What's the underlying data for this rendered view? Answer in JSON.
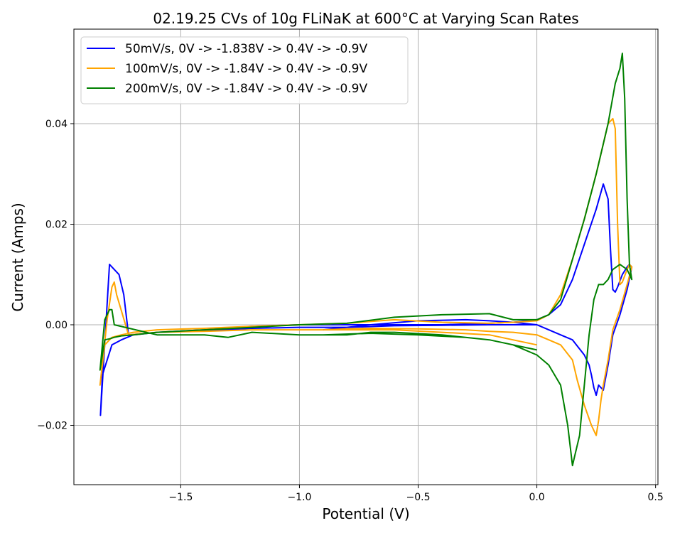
{
  "chart_data": {
    "type": "line",
    "title": "02.19.25 CVs of 10g FLiNaK at 600°C at Varying Scan Rates",
    "xlabel": "Potential (V)",
    "ylabel": "Current (Amps)",
    "xlim": [
      -1.95,
      0.51
    ],
    "ylim": [
      -0.0318,
      0.0588
    ],
    "xticks": [
      -1.5,
      -1.0,
      -0.5,
      0.0,
      0.5
    ],
    "xtick_labels": [
      "−1.5",
      "−1.0",
      "−0.5",
      "0.0",
      "0.5"
    ],
    "yticks": [
      -0.02,
      0.0,
      0.02,
      0.04
    ],
    "ytick_labels": [
      "−0.02",
      "0.00",
      "0.02",
      "0.04"
    ],
    "grid": true,
    "legend_position": "top-left",
    "series": [
      {
        "name": "50mV/s, 0V -> -1.838V -> 0.4V -> -0.9V",
        "color": "#0000ff",
        "x": [
          0.0,
          -0.2,
          -0.4,
          -0.6,
          -0.8,
          -1.0,
          -1.2,
          -1.4,
          -1.6,
          -1.72,
          -1.74,
          -1.76,
          -1.8,
          -1.838,
          -1.83,
          -1.79,
          -1.75,
          -1.7,
          -1.6,
          -1.4,
          -1.2,
          -1.0,
          -0.8,
          -0.6,
          -0.4,
          -0.2,
          -0.1,
          0.0,
          0.05,
          0.1,
          0.15,
          0.2,
          0.25,
          0.28,
          0.3,
          0.31,
          0.32,
          0.33,
          0.34,
          0.36,
          0.38,
          0.39,
          0.4,
          0.38,
          0.35,
          0.32,
          0.3,
          0.28,
          0.26,
          0.25,
          0.24,
          0.23,
          0.22,
          0.2,
          0.15,
          0.1,
          0.05,
          0.0,
          -0.1,
          -0.2,
          -0.3,
          -0.5,
          -0.7,
          -0.8,
          -0.9
        ],
        "y": [
          0.0,
          0.0,
          -0.0001,
          -0.0002,
          -0.0005,
          -0.0005,
          -0.0007,
          -0.0012,
          -0.0015,
          -0.002,
          0.006,
          0.01,
          0.012,
          -0.018,
          -0.01,
          -0.004,
          -0.003,
          -0.002,
          -0.0015,
          -0.001,
          -0.0003,
          0.0,
          0.0,
          0.0,
          0.0,
          0.0003,
          0.0005,
          0.001,
          0.002,
          0.004,
          0.009,
          0.016,
          0.023,
          0.028,
          0.025,
          0.015,
          0.007,
          0.0065,
          0.0075,
          0.01,
          0.0115,
          0.012,
          0.0115,
          0.007,
          0.002,
          -0.002,
          -0.008,
          -0.013,
          -0.012,
          -0.014,
          -0.0125,
          -0.01,
          -0.008,
          -0.006,
          -0.003,
          -0.002,
          -0.001,
          0.0,
          0.0005,
          0.0008,
          0.001,
          0.0008,
          0.0,
          -0.0005,
          -0.001
        ]
      },
      {
        "name": "100mV/s, 0V -> -1.84V -> 0.4V -> -0.9V",
        "color": "#ffa500",
        "x": [
          0.0,
          -0.2,
          -0.4,
          -0.6,
          -0.8,
          -1.0,
          -1.2,
          -1.4,
          -1.6,
          -1.72,
          -1.77,
          -1.78,
          -1.79,
          -1.81,
          -1.84,
          -1.82,
          -1.79,
          -1.75,
          -1.7,
          -1.6,
          -1.4,
          -1.2,
          -1.0,
          -0.8,
          -0.6,
          -0.4,
          -0.2,
          -0.1,
          0.0,
          0.05,
          0.1,
          0.15,
          0.2,
          0.25,
          0.3,
          0.32,
          0.33,
          0.34,
          0.35,
          0.36,
          0.38,
          0.39,
          0.4,
          0.38,
          0.35,
          0.32,
          0.3,
          0.28,
          0.27,
          0.26,
          0.25,
          0.23,
          0.2,
          0.17,
          0.15,
          0.1,
          0.05,
          0.0,
          -0.1,
          -0.2,
          -0.3,
          -0.5,
          -0.7,
          -0.8,
          -0.9
        ],
        "y": [
          -0.004,
          -0.002,
          -0.0015,
          -0.001,
          -0.001,
          -0.001,
          -0.001,
          -0.0013,
          -0.0015,
          -0.002,
          0.006,
          0.0085,
          0.0075,
          0.001,
          -0.012,
          -0.004,
          -0.0025,
          -0.002,
          -0.0015,
          -0.001,
          -0.0007,
          -0.0003,
          0.0,
          0.0003,
          0.001,
          0.0005,
          0.0003,
          0.0005,
          0.0008,
          0.002,
          0.006,
          0.013,
          0.021,
          0.03,
          0.04,
          0.041,
          0.039,
          0.02,
          0.008,
          0.0085,
          0.011,
          0.012,
          0.0115,
          0.008,
          0.003,
          -0.001,
          -0.007,
          -0.012,
          -0.015,
          -0.019,
          -0.022,
          -0.02,
          -0.016,
          -0.011,
          -0.007,
          -0.004,
          -0.003,
          -0.002,
          -0.0015,
          -0.0013,
          -0.001,
          -0.0008,
          -0.0007,
          -0.0008,
          -0.001
        ]
      },
      {
        "name": "200mV/s, 0V -> -1.84V -> 0.4V -> -0.9V",
        "color": "#008000",
        "x": [
          0.0,
          -0.2,
          -0.4,
          -0.6,
          -0.7,
          -0.8,
          -1.0,
          -1.2,
          -1.3,
          -1.4,
          -1.6,
          -1.78,
          -1.79,
          -1.8,
          -1.82,
          -1.84,
          -1.82,
          -1.8,
          -1.78,
          -1.75,
          -1.7,
          -1.6,
          -1.4,
          -1.2,
          -1.0,
          -0.8,
          -0.6,
          -0.4,
          -0.2,
          -0.1,
          0.0,
          0.05,
          0.1,
          0.15,
          0.2,
          0.25,
          0.3,
          0.33,
          0.35,
          0.36,
          0.37,
          0.38,
          0.39,
          0.4,
          0.38,
          0.35,
          0.32,
          0.3,
          0.28,
          0.26,
          0.24,
          0.22,
          0.2,
          0.18,
          0.16,
          0.15,
          0.13,
          0.1,
          0.05,
          0.0,
          -0.1,
          -0.2,
          -0.3,
          -0.5,
          -0.7,
          -0.9
        ],
        "y": [
          -0.005,
          -0.003,
          -0.002,
          -0.0015,
          -0.0015,
          -0.002,
          -0.002,
          -0.0015,
          -0.0025,
          -0.002,
          -0.002,
          0.0,
          0.003,
          0.003,
          0.001,
          -0.009,
          -0.003,
          -0.0028,
          -0.0025,
          -0.0022,
          -0.002,
          -0.0015,
          -0.001,
          -0.0005,
          0.0,
          0.0003,
          0.0015,
          0.002,
          0.0022,
          0.001,
          0.001,
          0.002,
          0.005,
          0.013,
          0.021,
          0.03,
          0.04,
          0.048,
          0.051,
          0.054,
          0.045,
          0.025,
          0.012,
          0.009,
          0.011,
          0.012,
          0.011,
          0.009,
          0.008,
          0.008,
          0.005,
          -0.002,
          -0.012,
          -0.022,
          -0.026,
          -0.028,
          -0.02,
          -0.012,
          -0.008,
          -0.006,
          -0.004,
          -0.003,
          -0.0025,
          -0.002,
          -0.0017,
          -0.002
        ]
      }
    ]
  }
}
